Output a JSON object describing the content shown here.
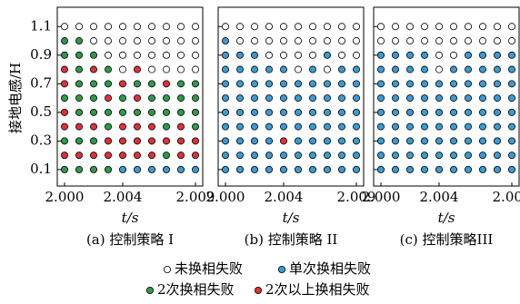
{
  "chart_data": {
    "type": "dot-matrix",
    "ylabel": "接地电感/H",
    "xlabel": "t/s",
    "x": [
      2.0,
      2.001,
      2.002,
      2.003,
      2.004,
      2.005,
      2.006,
      2.007,
      2.008,
      2.009
    ],
    "y": [
      0.1,
      0.2,
      0.3,
      0.4,
      0.5,
      0.6,
      0.7,
      0.8,
      0.9,
      1.0,
      1.1
    ],
    "xlim": [
      1.9995,
      2.0095
    ],
    "ylim": [
      -0.015,
      1.235
    ],
    "xticks": [
      {
        "value": 2.0,
        "label": "2.000"
      },
      {
        "value": 2.004,
        "label": "2.004"
      },
      2.009
    ],
    "yticks": [
      0.1,
      0.3,
      0.5,
      0.7,
      0.9,
      1.1
    ],
    "classes": [
      {
        "name": "未换相失败",
        "color": "#ffffff"
      },
      {
        "name": "单次换相失败",
        "color": "#3a9bd5"
      },
      {
        "name": "2次换相失败",
        "color": "#2e9a4a"
      },
      {
        "name": "2次以上换相失败",
        "color": "#e0303a"
      }
    ],
    "panels": [
      {
        "subtitle": "(a)  控制策略 I",
        "grid": [
          [
            2,
            2,
            2,
            2,
            1,
            1,
            1,
            1,
            1,
            1
          ],
          [
            3,
            3,
            3,
            3,
            3,
            3,
            3,
            2,
            3,
            3
          ],
          [
            2,
            2,
            2,
            3,
            3,
            3,
            3,
            3,
            3,
            3
          ],
          [
            3,
            3,
            3,
            2,
            3,
            3,
            3,
            2,
            3,
            2
          ],
          [
            3,
            2,
            2,
            2,
            2,
            2,
            2,
            2,
            2,
            2
          ],
          [
            2,
            2,
            2,
            3,
            2,
            3,
            2,
            2,
            2,
            2
          ],
          [
            3,
            2,
            2,
            2,
            3,
            2,
            2,
            3,
            2,
            2
          ],
          [
            3,
            2,
            3,
            2,
            0,
            3,
            0,
            0,
            0,
            0
          ],
          [
            2,
            2,
            2,
            0,
            0,
            0,
            0,
            0,
            0,
            0
          ],
          [
            2,
            2,
            0,
            0,
            0,
            0,
            0,
            0,
            0,
            0
          ],
          [
            0,
            0,
            0,
            0,
            0,
            0,
            0,
            0,
            0,
            0
          ]
        ]
      },
      {
        "subtitle": "(b)  控制策略 II",
        "grid": [
          [
            1,
            1,
            1,
            1,
            1,
            1,
            1,
            1,
            1,
            1
          ],
          [
            1,
            1,
            1,
            1,
            1,
            1,
            1,
            1,
            1,
            1
          ],
          [
            1,
            1,
            1,
            1,
            3,
            1,
            1,
            1,
            1,
            1
          ],
          [
            1,
            1,
            1,
            1,
            1,
            1,
            1,
            1,
            1,
            1
          ],
          [
            1,
            1,
            1,
            1,
            1,
            1,
            1,
            1,
            1,
            1
          ],
          [
            1,
            1,
            1,
            1,
            1,
            1,
            1,
            1,
            1,
            1
          ],
          [
            1,
            1,
            1,
            1,
            1,
            1,
            1,
            1,
            1,
            1
          ],
          [
            1,
            1,
            1,
            1,
            1,
            0,
            1,
            0,
            1,
            1
          ],
          [
            1,
            1,
            1,
            0,
            0,
            0,
            0,
            1,
            0,
            0
          ],
          [
            1,
            0,
            0,
            0,
            0,
            0,
            0,
            0,
            0,
            0
          ],
          [
            0,
            0,
            0,
            0,
            0,
            0,
            0,
            0,
            0,
            0
          ]
        ]
      },
      {
        "subtitle": "(c)  控制策略III",
        "grid": [
          [
            1,
            1,
            1,
            1,
            1,
            1,
            1,
            1,
            1,
            1
          ],
          [
            1,
            1,
            1,
            1,
            1,
            1,
            1,
            1,
            1,
            1
          ],
          [
            1,
            1,
            1,
            1,
            1,
            1,
            1,
            1,
            1,
            1
          ],
          [
            1,
            1,
            1,
            1,
            1,
            1,
            1,
            1,
            1,
            1
          ],
          [
            1,
            1,
            1,
            1,
            1,
            1,
            1,
            1,
            1,
            1
          ],
          [
            1,
            1,
            1,
            1,
            1,
            1,
            1,
            1,
            1,
            1
          ],
          [
            1,
            1,
            1,
            1,
            1,
            1,
            1,
            1,
            1,
            1
          ],
          [
            1,
            1,
            1,
            1,
            0,
            1,
            1,
            1,
            1,
            1
          ],
          [
            1,
            1,
            1,
            1,
            0,
            0,
            1,
            1,
            1,
            1
          ],
          [
            0,
            0,
            0,
            0,
            0,
            0,
            0,
            0,
            0,
            0
          ],
          [
            0,
            0,
            0,
            0,
            0,
            0,
            0,
            0,
            0,
            0
          ]
        ]
      }
    ]
  }
}
